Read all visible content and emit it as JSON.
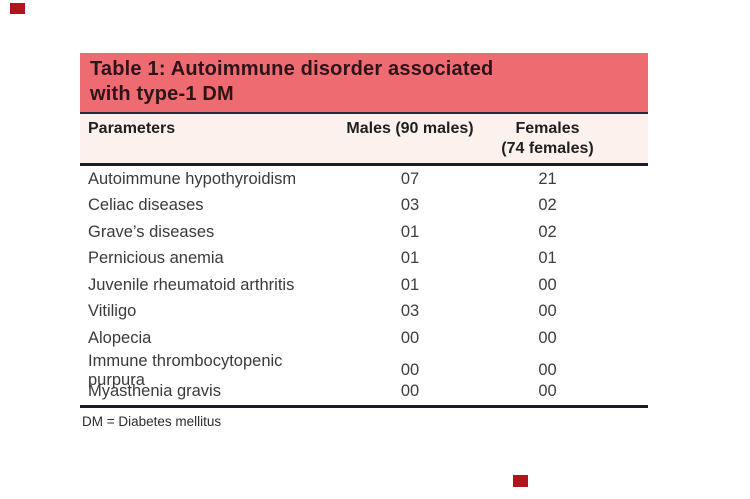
{
  "table": {
    "title_line1": "Table 1: Autoimmune disorder associated",
    "title_line2": "with type-1 DM",
    "columns": {
      "parameters": "Parameters",
      "males": "Males (90 males)",
      "females_line1": "Females",
      "females_line2": "(74 females)"
    },
    "rows": [
      {
        "parameter": "Autoimmune hypothyroidism",
        "males": "07",
        "females": "21"
      },
      {
        "parameter": "Celiac diseases",
        "males": "03",
        "females": "02"
      },
      {
        "parameter": "Grave’s diseases",
        "males": "01",
        "females": "02"
      },
      {
        "parameter": "Pernicious anemia",
        "males": "01",
        "females": "01"
      },
      {
        "parameter": "Juvenile rheumatoid arthritis",
        "males": "01",
        "females": "00"
      },
      {
        "parameter": "Vitiligo",
        "males": "03",
        "females": "00"
      },
      {
        "parameter": "Alopecia",
        "males": "00",
        "females": "00"
      },
      {
        "parameter": "Immune thrombocytopenic purpura",
        "males": "00",
        "females": "00"
      },
      {
        "parameter": "Myasthenia gravis",
        "males": "00",
        "females": "00"
      }
    ],
    "footnote": "DM = Diabetes mellitus",
    "colors": {
      "title_band_bg": "#ee6b71",
      "subheader_bg": "#fdf1ee",
      "rule": "#1a1d24",
      "marker_red": "#b0151c"
    }
  }
}
